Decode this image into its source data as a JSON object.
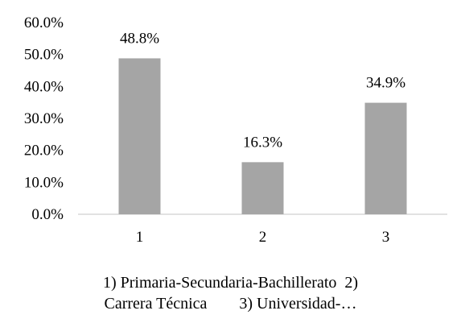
{
  "chart_data": {
    "type": "bar",
    "categories": [
      "1",
      "2",
      "3"
    ],
    "values": [
      48.8,
      16.3,
      34.9
    ],
    "data_labels": [
      "48.8%",
      "16.3%",
      "34.9%"
    ],
    "ylim": [
      0,
      60
    ],
    "y_ticks": [
      0,
      10,
      20,
      30,
      40,
      50,
      60
    ],
    "y_tick_labels": [
      "0.0%",
      "10.0%",
      "20.0%",
      "30.0%",
      "40.0%",
      "50.0%",
      "60.0%"
    ],
    "bar_color": "#a5a5a5",
    "axis_color": "#d9d9d9",
    "gridlines": false,
    "legend": "none"
  },
  "caption": {
    "line1": "1) Primaria-Secundaria-Bachillerato  2)",
    "line2": "Carrera Técnica        3) Universidad-…"
  }
}
